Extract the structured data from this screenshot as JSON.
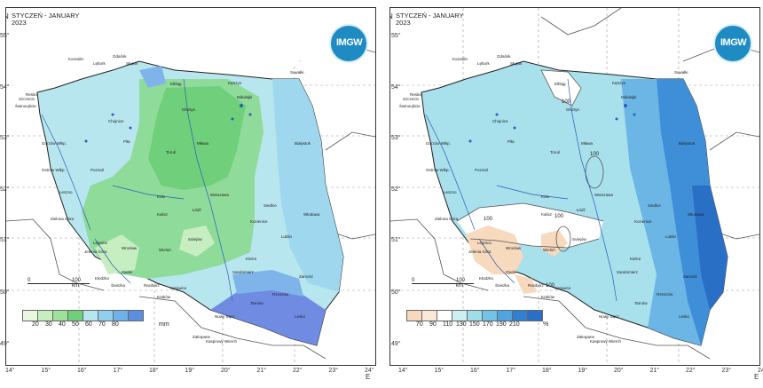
{
  "panels": [
    {
      "title_line1": "STYCZEŃ - JANUARY",
      "title_line2": "2023",
      "logo_text": "IMGW",
      "legend_ticks": [
        "20",
        "30",
        "40",
        "50",
        "60",
        "70",
        "80"
      ],
      "legend_unit": "mm",
      "legend_colors": [
        "#e8f8df",
        "#c6eec0",
        "#9fe09a",
        "#6fcf7a",
        "#b8e6ef",
        "#8fd0ee",
        "#6cb3ea",
        "#5a8fe0"
      ],
      "scale_left": "0",
      "scale_right": "100 km"
    },
    {
      "title_line1": "STYCZEŃ - JANUARY",
      "title_line2": "2023",
      "logo_text": "IMGW",
      "legend_ticks": [
        "70",
        "90",
        "110",
        "130",
        "150",
        "170",
        "190",
        "210"
      ],
      "legend_unit": "%",
      "legend_colors": [
        "#f7d9bd",
        "#fbe9d8",
        "#ffffff",
        "#cdeff3",
        "#9fdde9",
        "#72c3e6",
        "#4ea5e0",
        "#2f80d3",
        "#2a6fc6"
      ],
      "scale_left": "0",
      "scale_right": "100 km",
      "contour_label": "100"
    }
  ],
  "axes": {
    "lat_labels": [
      "55°",
      "54°",
      "53°",
      "52°",
      "51°",
      "50°",
      "49°"
    ],
    "lon_labels": [
      "14°",
      "15°",
      "16°",
      "17°",
      "18°",
      "19°",
      "20°",
      "21°",
      "22°",
      "23°",
      "24°"
    ],
    "north": "N",
    "east": "E"
  },
  "cities": [
    "Koszalin",
    "Lębork",
    "Słupsk",
    "Elbląg",
    "Olsztyn",
    "Suwałki",
    "Gdańsk",
    "Kętrzyn",
    "Mikołajki",
    "Szczecin",
    "Resko",
    "Chojnice",
    "Piła",
    "Toruń",
    "Białystok",
    "Mława",
    "Ostrów Wlkp.",
    "Poznań",
    "Warszawa",
    "Koło",
    "Łódź",
    "Siedlce",
    "Leszno",
    "Kalisz",
    "Kozienice",
    "Włodawa",
    "Legnica",
    "Wrocław",
    "Wieluń",
    "Lublin",
    "Sulejów",
    "Opole",
    "Katowice",
    "Kielce",
    "Sandomierz",
    "Zamość",
    "Kraków",
    "Rzeszów",
    "Tarnów",
    "Nowy Sącz",
    "Lesko",
    "Zakopane",
    "Kasprowy Wierch",
    "Śnieżka",
    "Racibórz",
    "Świnoujście",
    "Jelenia Góra",
    "Kłodzko",
    "Zielona Góra",
    "Gorzów Wlkp."
  ],
  "colors": {
    "frame": "#333333",
    "water": "#2a5fb8",
    "border": "#222222"
  }
}
